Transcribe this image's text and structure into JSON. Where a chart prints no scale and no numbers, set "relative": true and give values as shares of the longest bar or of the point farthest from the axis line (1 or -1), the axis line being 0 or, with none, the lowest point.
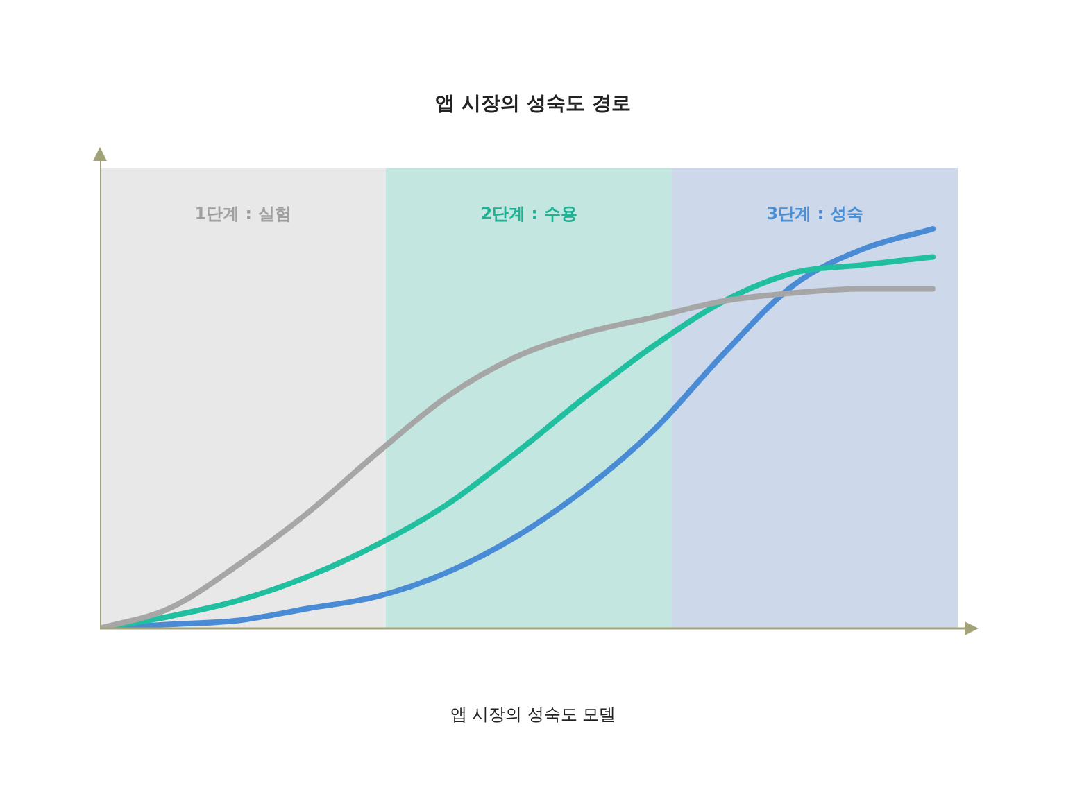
{
  "chart_data": {
    "type": "line",
    "title": "앱 시장의 성숙도 경로",
    "annotations": [
      "1단계 : 실험",
      "2단계 : 수용",
      "3단계 : 성숙",
      "앱 시장의 성숙도 모델"
    ],
    "relative": true,
    "categories": [
      null,
      null,
      null,
      null,
      null,
      null,
      null,
      null,
      null,
      null,
      null,
      null,
      null
    ],
    "series": [
      {
        "color": "#a6a6a6",
        "values": [
          0,
          0.05,
          0.16,
          0.29,
          0.44,
          0.58,
          0.68,
          0.74,
          0.78,
          0.82,
          0.84,
          0.85,
          0.85
        ]
      },
      {
        "color": "#1fbf9f",
        "values": [
          0,
          0.03,
          0.07,
          0.13,
          0.21,
          0.31,
          0.44,
          0.58,
          0.71,
          0.82,
          0.89,
          0.91,
          0.93
        ]
      },
      {
        "color": "#4a8bd6",
        "values": [
          0,
          0.01,
          0.02,
          0.05,
          0.08,
          0.14,
          0.23,
          0.35,
          0.5,
          0.69,
          0.86,
          0.95,
          1
        ]
      }
    ],
    "legend": false,
    "marker": "none"
  }
}
